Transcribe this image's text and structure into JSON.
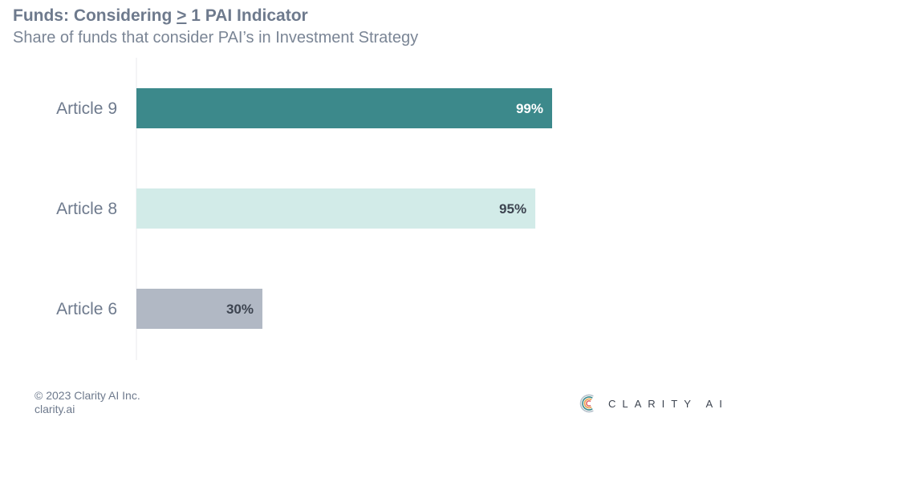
{
  "header": {
    "title_prefix": "Funds: Considering ",
    "title_symbol": ">",
    "title_suffix": " 1 PAI Indicator",
    "subtitle": "Share of funds that consider PAI’s in Investment Strategy"
  },
  "chart_data": {
    "type": "bar",
    "orientation": "horizontal",
    "categories": [
      "Article 9",
      "Article 8",
      "Article 6"
    ],
    "values": [
      99,
      95,
      30
    ],
    "value_labels": [
      "99%",
      "95%",
      "30%"
    ],
    "bar_colors": [
      "#3c898b",
      "#d2ebe8",
      "#b1b8c4"
    ],
    "label_colors": [
      "#ffffff",
      "#3d4450",
      "#3d4450"
    ],
    "xlim": [
      0,
      100
    ],
    "unit": "%",
    "grid": false,
    "legend": "none"
  },
  "footer": {
    "copyright": "© 2023 Clarity AI Inc.",
    "site": "clarity.ai"
  },
  "brand": {
    "name": "CLARITY AI",
    "icon": "clarity-ai-logo-icon",
    "logo_colors": [
      "#3c898b",
      "#e8a14b",
      "#e56d6d",
      "#b7c2cc"
    ]
  }
}
